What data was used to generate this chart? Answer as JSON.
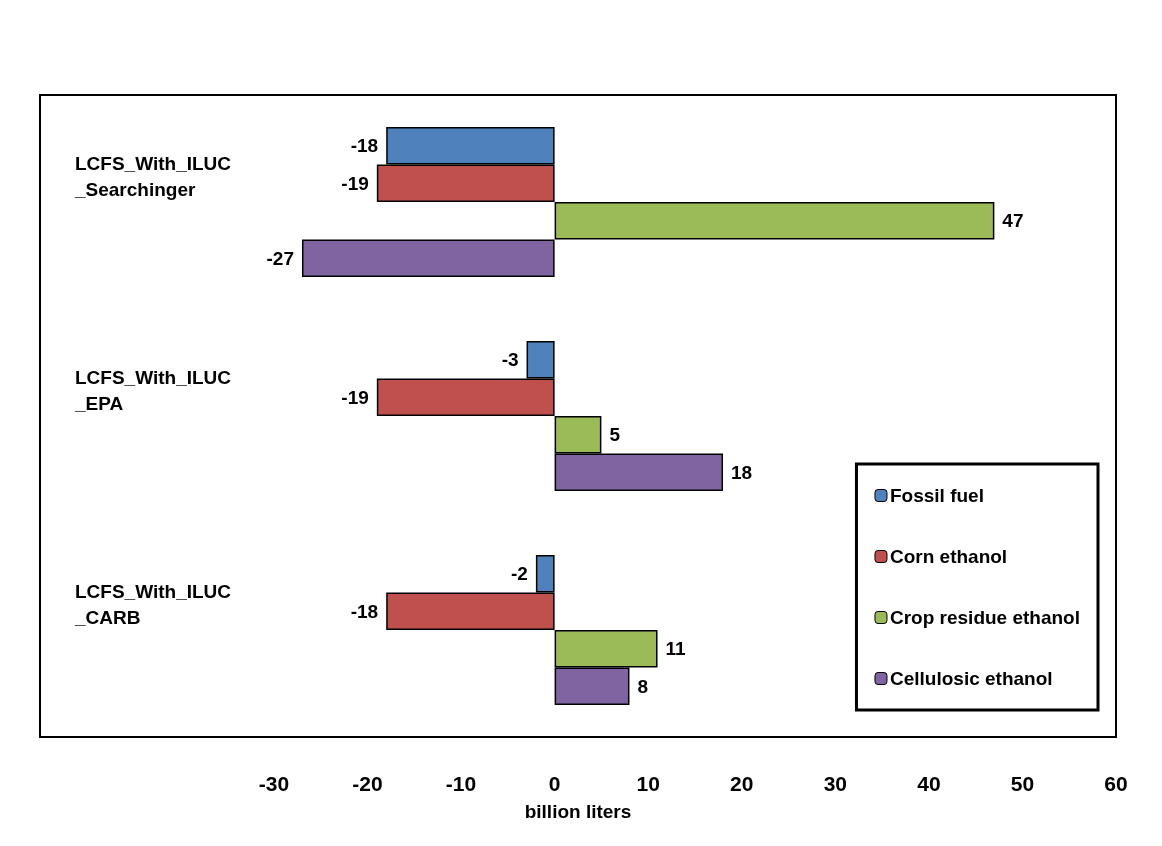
{
  "chart_data": {
    "type": "bar",
    "orientation": "horizontal",
    "xlabel": "billion liters",
    "categories": [
      "LCFS_With_ILUC_Searchinger",
      "LCFS_With_ILUC_EPA",
      "LCFS_With_ILUC_CARB"
    ],
    "series": [
      {
        "name": "Fossil fuel",
        "color": "#4f81bd",
        "values": [
          -18,
          -3,
          -2
        ]
      },
      {
        "name": "Corn ethanol",
        "color": "#c0504d",
        "values": [
          -19,
          -19,
          -18
        ]
      },
      {
        "name": "Crop residue ethanol",
        "color": "#9bbb59",
        "values": [
          47,
          5,
          11
        ]
      },
      {
        "name": "Cellulosic ethanol",
        "color": "#8064a2",
        "values": [
          -27,
          18,
          8
        ]
      }
    ],
    "xlim": [
      -55,
      60
    ],
    "xticks": [
      -30,
      -20,
      -10,
      0,
      10,
      20,
      30,
      40,
      50,
      60
    ],
    "data_labels": true,
    "grid": false,
    "legend": "bottom right"
  }
}
